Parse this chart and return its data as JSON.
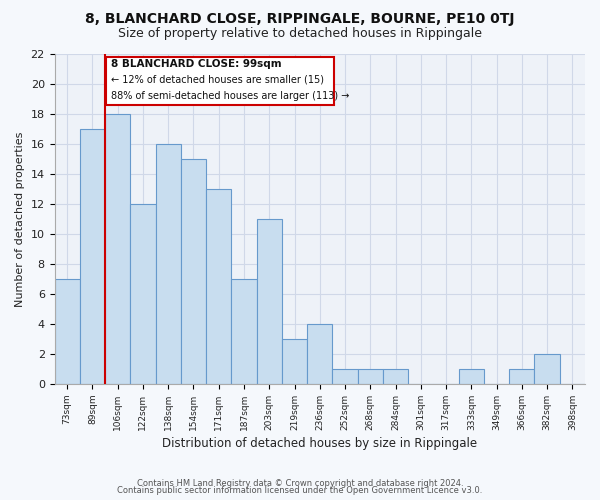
{
  "title": "8, BLANCHARD CLOSE, RIPPINGALE, BOURNE, PE10 0TJ",
  "subtitle": "Size of property relative to detached houses in Rippingale",
  "xlabel": "Distribution of detached houses by size in Rippingale",
  "ylabel": "Number of detached properties",
  "footer_line1": "Contains HM Land Registry data © Crown copyright and database right 2024.",
  "footer_line2": "Contains public sector information licensed under the Open Government Licence v3.0.",
  "bar_labels": [
    "73sqm",
    "89sqm",
    "106sqm",
    "122sqm",
    "138sqm",
    "154sqm",
    "171sqm",
    "187sqm",
    "203sqm",
    "219sqm",
    "236sqm",
    "252sqm",
    "268sqm",
    "284sqm",
    "301sqm",
    "317sqm",
    "333sqm",
    "349sqm",
    "366sqm",
    "382sqm",
    "398sqm"
  ],
  "bar_values": [
    7,
    17,
    18,
    12,
    16,
    15,
    13,
    7,
    11,
    3,
    4,
    1,
    1,
    1,
    0,
    0,
    1,
    0,
    1,
    2,
    0
  ],
  "bar_color": "#c8ddef",
  "bar_edge_color": "#6699cc",
  "vline_color": "#cc0000",
  "vline_pos": 1.5,
  "annotation_title": "8 BLANCHARD CLOSE: 99sqm",
  "annotation_line1": "← 12% of detached houses are smaller (15)",
  "annotation_line2": "88% of semi-detached houses are larger (113) →",
  "annotation_box_color": "#ffffff",
  "annotation_box_edge": "#cc0000",
  "ylim": [
    0,
    22
  ],
  "yticks": [
    0,
    2,
    4,
    6,
    8,
    10,
    12,
    14,
    16,
    18,
    20,
    22
  ],
  "plot_bg_color": "#eef2f8",
  "fig_bg_color": "#f5f8fc",
  "grid_color": "#d0d8e8",
  "title_fontsize": 10,
  "subtitle_fontsize": 9
}
